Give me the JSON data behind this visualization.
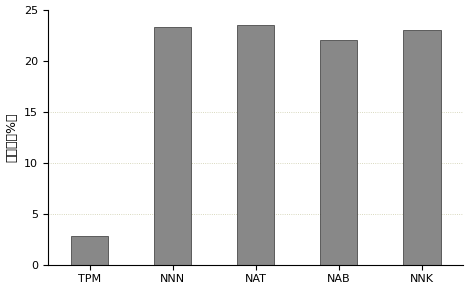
{
  "categories": [
    "TPM",
    "NNN",
    "NAT",
    "NAB",
    "NNK"
  ],
  "values": [
    2.8,
    23.3,
    23.5,
    22.0,
    23.0
  ],
  "bar_color": "#888888",
  "ylabel": "去除率（%）",
  "ylim": [
    0,
    25
  ],
  "yticks": [
    0,
    5,
    10,
    15,
    20,
    25
  ],
  "grid_yticks": [
    5,
    10,
    15
  ],
  "grid_color": "#ccccaa",
  "grid_linestyle": ":",
  "grid_linewidth": 0.6,
  "background_color": "#ffffff",
  "bar_width": 0.45,
  "ylabel_fontsize": 9,
  "tick_fontsize": 8,
  "dot_color1": "#00aa00",
  "dot_color2": "#cc00cc",
  "dot_density": 1200
}
